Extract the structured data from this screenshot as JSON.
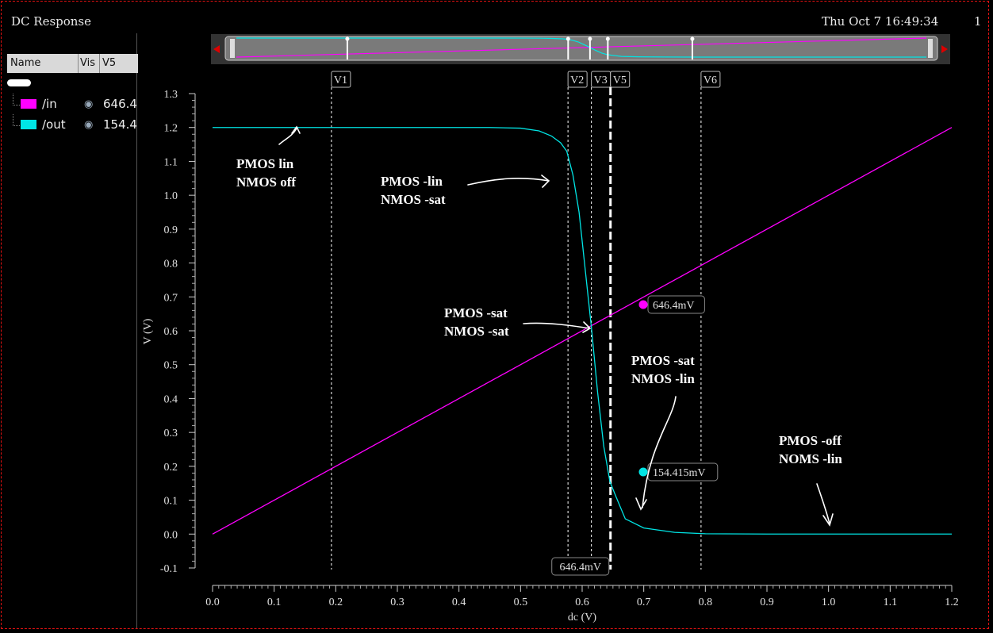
{
  "window": {
    "title": "DC Response",
    "datetime": "Thu Oct 7 16:49:34",
    "page_num": "1"
  },
  "signal_panel": {
    "headers": [
      "Name",
      "Vis",
      "V5"
    ],
    "signals": [
      {
        "name": "/in",
        "value": "646.4",
        "color": "#ff00ff"
      },
      {
        "name": "/out",
        "value": "154.4",
        "color": "#00e5e5"
      }
    ]
  },
  "chart_data": {
    "type": "line",
    "xlabel": "dc (V)",
    "ylabel": "V (V)",
    "xlim": [
      0,
      1.2
    ],
    "ylim": [
      -0.1,
      1.3
    ],
    "xticks": [
      "0.0",
      "0.1",
      "0.2",
      "0.3",
      "0.4",
      "0.5",
      "0.6",
      "0.7",
      "0.8",
      "0.9",
      "1.0",
      "1.1",
      "1.2"
    ],
    "yticks": [
      "-0.1",
      "0.0",
      "0.1",
      "0.2",
      "0.3",
      "0.4",
      "0.5",
      "0.6",
      "0.7",
      "0.8",
      "0.9",
      "1.0",
      "1.1",
      "1.2",
      "1.3"
    ],
    "grid": false,
    "series": [
      {
        "name": "/in",
        "color": "#ff00ff",
        "x": [
          0,
          1.2
        ],
        "y": [
          0,
          1.2
        ]
      },
      {
        "name": "/out",
        "color": "#00e5e5",
        "x": [
          0,
          0.3,
          0.45,
          0.5,
          0.53,
          0.55,
          0.565,
          0.575,
          0.585,
          0.595,
          0.605,
          0.615,
          0.625,
          0.635,
          0.645,
          0.655,
          0.67,
          0.7,
          0.75,
          0.8,
          0.9,
          1.0,
          1.2
        ],
        "y": [
          1.2,
          1.2,
          1.2,
          1.198,
          1.19,
          1.175,
          1.155,
          1.13,
          1.06,
          0.95,
          0.78,
          0.61,
          0.42,
          0.26,
          0.155,
          0.11,
          0.045,
          0.018,
          0.005,
          0.001,
          0,
          0,
          0
        ]
      }
    ],
    "markers": [
      {
        "name": "V1",
        "x": 0.193
      },
      {
        "name": "V2",
        "x": 0.577
      },
      {
        "name": "V3",
        "x": 0.615
      },
      {
        "name": "V5",
        "x": 0.646,
        "active": true
      },
      {
        "name": "V6",
        "x": 0.793
      }
    ],
    "active_x_readout": "646.4mV",
    "points": [
      {
        "label": "646.4mV",
        "x": 0.646,
        "y": 0.6464,
        "color": "#ff00ff"
      },
      {
        "label": "154.415mV",
        "x": 0.646,
        "y": 0.1544,
        "color": "#00e5e5"
      }
    ],
    "annotations": [
      {
        "lines": [
          "PMOS lin",
          "NMOS off"
        ]
      },
      {
        "lines": [
          "PMOS -lin",
          "NMOS -sat"
        ]
      },
      {
        "lines": [
          "PMOS -sat",
          "NMOS -sat"
        ]
      },
      {
        "lines": [
          "PMOS -sat",
          "NMOS -lin"
        ]
      },
      {
        "lines": [
          "PMOS -off",
          "NOMS -lin"
        ]
      }
    ]
  }
}
